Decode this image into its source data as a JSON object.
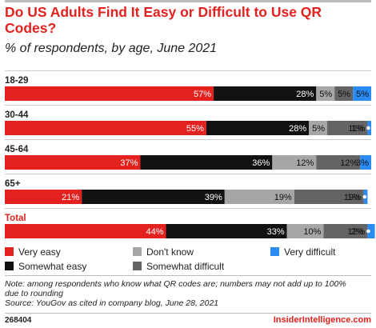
{
  "header": {
    "title": "Do US Adults Find It Easy or Difficult to Use QR Codes?",
    "subtitle": "% of respondents, by age, June 2021"
  },
  "chart_data": {
    "type": "bar",
    "orientation": "horizontal",
    "stacked": true,
    "title": "Do US Adults Find It Easy or Difficult to Use QR Codes?",
    "subtitle": "% of respondents, by age, June 2021",
    "categories": [
      "18-29",
      "30-44",
      "45-64",
      "65+",
      "Total"
    ],
    "series": [
      {
        "name": "Very easy",
        "color": "#e3211f",
        "values": [
          57,
          55,
          37,
          21,
          44
        ]
      },
      {
        "name": "Somewhat easy",
        "color": "#111111",
        "values": [
          28,
          28,
          36,
          39,
          33
        ]
      },
      {
        "name": "Don't know",
        "color": "#a6a6a6",
        "values": [
          5,
          5,
          12,
          19,
          10
        ]
      },
      {
        "name": "Somewhat difficult",
        "color": "#646464",
        "values": [
          5,
          11,
          12,
          19,
          12
        ]
      },
      {
        "name": "Very difficult",
        "color": "#2a8bf2",
        "values": [
          5,
          1,
          3,
          1,
          2
        ]
      }
    ],
    "legend_position": "bottom",
    "xlim": [
      0,
      100
    ]
  },
  "legend": [
    {
      "label": "Very easy",
      "color": "#e3211f"
    },
    {
      "label": "Don't know",
      "color": "#a6a6a6"
    },
    {
      "label": "Very difficult",
      "color": "#2a8bf2"
    },
    {
      "label": "Somewhat easy",
      "color": "#111111"
    },
    {
      "label": "Somewhat difficult",
      "color": "#646464"
    }
  ],
  "note": {
    "line1": "Note: among respondents who know what QR codes are; numbers may not add up to 100%",
    "line2": "due to rounding",
    "source": "Source: YouGov as cited in company blog, June 28, 2021"
  },
  "footer": {
    "id": "268404",
    "brand": "InsiderIntelligence.com"
  }
}
